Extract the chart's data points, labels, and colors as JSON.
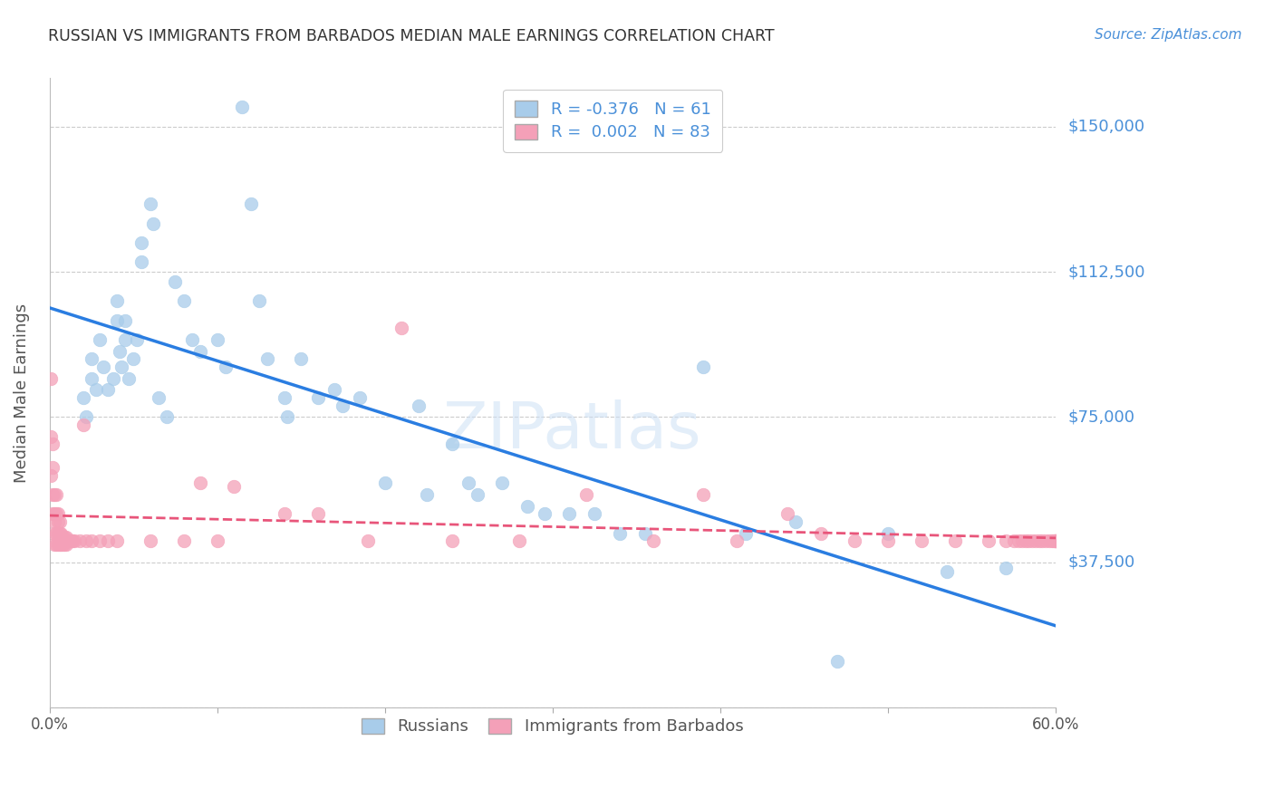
{
  "title": "RUSSIAN VS IMMIGRANTS FROM BARBADOS MEDIAN MALE EARNINGS CORRELATION CHART",
  "source": "Source: ZipAtlas.com",
  "ylabel": "Median Male Earnings",
  "yticks": [
    0,
    37500,
    75000,
    112500,
    150000
  ],
  "ytick_labels": [
    "",
    "$37,500",
    "$75,000",
    "$112,500",
    "$150,000"
  ],
  "watermark_text": "ZIPatlas",
  "legend_stat_labels": [
    "R = -0.376   N = 61",
    "R =  0.002   N = 83"
  ],
  "legend_labels": [
    "Russians",
    "Immigrants from Barbados"
  ],
  "blue_color": "#a8ccea",
  "pink_color": "#f4a0b8",
  "trendline_blue_color": "#2a7de1",
  "trendline_pink_color": "#e8557a",
  "title_color": "#333333",
  "axis_label_color": "#555555",
  "ytick_color": "#4a90d9",
  "grid_color": "#cccccc",
  "background_color": "#ffffff",
  "russians_x": [
    0.02,
    0.022,
    0.025,
    0.025,
    0.028,
    0.03,
    0.032,
    0.035,
    0.038,
    0.04,
    0.04,
    0.042,
    0.043,
    0.045,
    0.045,
    0.047,
    0.05,
    0.052,
    0.055,
    0.055,
    0.06,
    0.062,
    0.065,
    0.07,
    0.075,
    0.08,
    0.085,
    0.09,
    0.1,
    0.105,
    0.115,
    0.12,
    0.125,
    0.13,
    0.14,
    0.142,
    0.15,
    0.16,
    0.17,
    0.175,
    0.185,
    0.2,
    0.22,
    0.225,
    0.24,
    0.25,
    0.255,
    0.27,
    0.285,
    0.295,
    0.31,
    0.325,
    0.34,
    0.355,
    0.39,
    0.415,
    0.445,
    0.47,
    0.5,
    0.535,
    0.57
  ],
  "russians_y": [
    80000,
    75000,
    85000,
    90000,
    82000,
    95000,
    88000,
    82000,
    85000,
    100000,
    105000,
    92000,
    88000,
    100000,
    95000,
    85000,
    90000,
    95000,
    120000,
    115000,
    130000,
    125000,
    80000,
    75000,
    110000,
    105000,
    95000,
    92000,
    95000,
    88000,
    155000,
    130000,
    105000,
    90000,
    80000,
    75000,
    90000,
    80000,
    82000,
    78000,
    80000,
    58000,
    78000,
    55000,
    68000,
    58000,
    55000,
    58000,
    52000,
    50000,
    50000,
    50000,
    45000,
    45000,
    88000,
    45000,
    48000,
    12000,
    45000,
    35000,
    36000
  ],
  "barbados_x": [
    0.001,
    0.001,
    0.001,
    0.002,
    0.002,
    0.002,
    0.002,
    0.003,
    0.003,
    0.003,
    0.003,
    0.003,
    0.004,
    0.004,
    0.004,
    0.004,
    0.005,
    0.005,
    0.005,
    0.005,
    0.006,
    0.006,
    0.006,
    0.007,
    0.007,
    0.008,
    0.008,
    0.009,
    0.009,
    0.01,
    0.01,
    0.011,
    0.012,
    0.013,
    0.014,
    0.015,
    0.018,
    0.02,
    0.022,
    0.025,
    0.03,
    0.035,
    0.04,
    0.06,
    0.08,
    0.09,
    0.1,
    0.11,
    0.14,
    0.16,
    0.19,
    0.21,
    0.24,
    0.28,
    0.32,
    0.36,
    0.39,
    0.41,
    0.44,
    0.46,
    0.48,
    0.5,
    0.52,
    0.54,
    0.56,
    0.57,
    0.575,
    0.578,
    0.58,
    0.582,
    0.584,
    0.586,
    0.588,
    0.59,
    0.592,
    0.594,
    0.596,
    0.598,
    0.599,
    0.6,
    0.6,
    0.6,
    0.6
  ],
  "barbados_y": [
    85000,
    70000,
    60000,
    68000,
    62000,
    55000,
    50000,
    55000,
    50000,
    48000,
    45000,
    42000,
    55000,
    50000,
    45000,
    42000,
    50000,
    48000,
    45000,
    42000,
    48000,
    45000,
    42000,
    45000,
    42000,
    44000,
    42000,
    44000,
    42000,
    44000,
    42000,
    43000,
    43000,
    43000,
    43000,
    43000,
    43000,
    73000,
    43000,
    43000,
    43000,
    43000,
    43000,
    43000,
    43000,
    58000,
    43000,
    57000,
    50000,
    50000,
    43000,
    98000,
    43000,
    43000,
    55000,
    43000,
    55000,
    43000,
    50000,
    45000,
    43000,
    43000,
    43000,
    43000,
    43000,
    43000,
    43000,
    43000,
    43000,
    43000,
    43000,
    43000,
    43000,
    43000,
    43000,
    43000,
    43000,
    43000,
    43000,
    43000,
    43000,
    43000,
    43000
  ],
  "xlim": [
    0.0,
    0.6
  ],
  "ylim": [
    0,
    162500
  ],
  "figsize": [
    14.06,
    8.92
  ],
  "dpi": 100
}
